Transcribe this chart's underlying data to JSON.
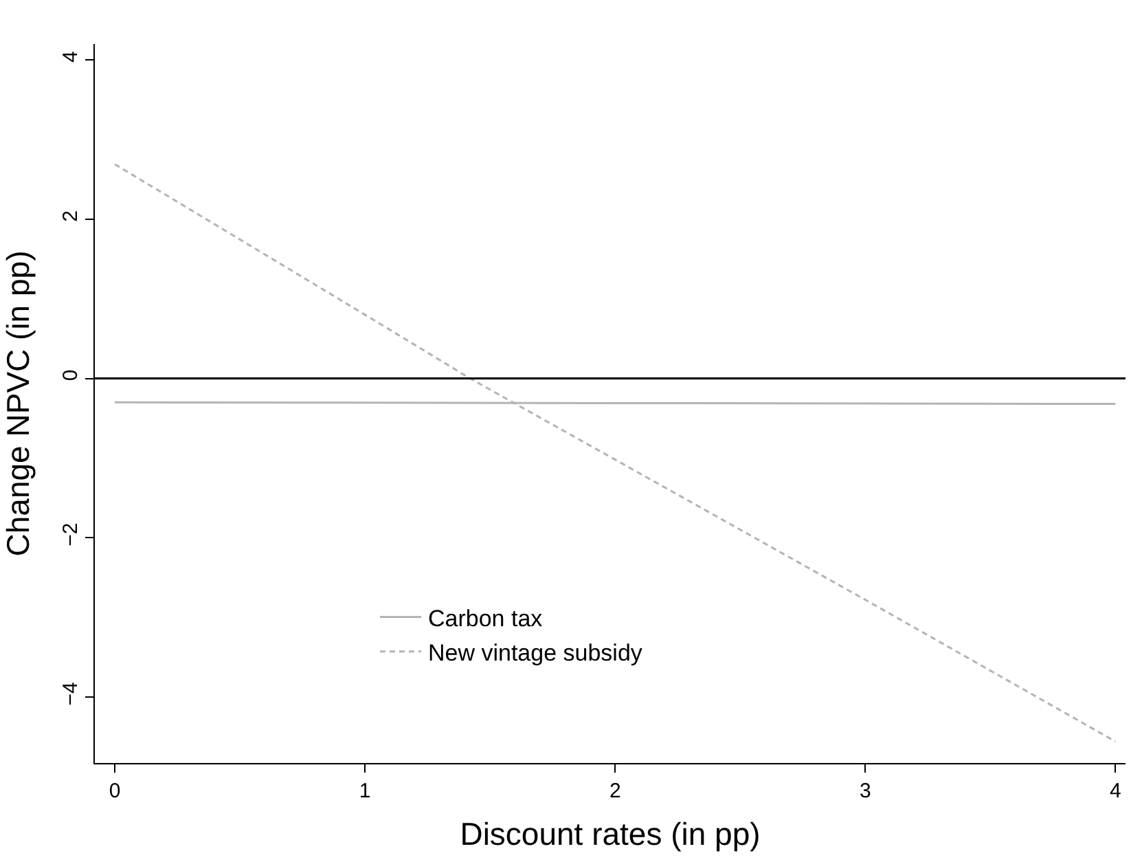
{
  "chart_data": {
    "type": "line",
    "xlabel": "Discount rates (in pp)",
    "ylabel": "Change NPVC (in pp)",
    "xlim": [
      -0.08,
      4.04
    ],
    "xticks": [
      0,
      1,
      2,
      3,
      4
    ],
    "ylim": [
      -4.83,
      4.2
    ],
    "yticks": [
      -4,
      -2,
      0,
      2,
      4
    ],
    "legend": "bottom",
    "marker": "none",
    "ref_lines": [
      {
        "axis": "y",
        "value": 0,
        "color": "#000000"
      }
    ],
    "series": [
      {
        "name": "Carbon tax",
        "color": "#b4b4b4",
        "line_style": "solid",
        "x": [
          0,
          2,
          4
        ],
        "values": [
          -0.3,
          -0.31,
          -0.32
        ]
      },
      {
        "name": "New vintage subsidy",
        "color": "#b4b4b4",
        "line_style": "dashed",
        "x": [
          0,
          1,
          1.42,
          2,
          3,
          4
        ],
        "values": [
          2.69,
          0.8,
          0,
          -1.02,
          -2.78,
          -4.56
        ]
      }
    ]
  }
}
